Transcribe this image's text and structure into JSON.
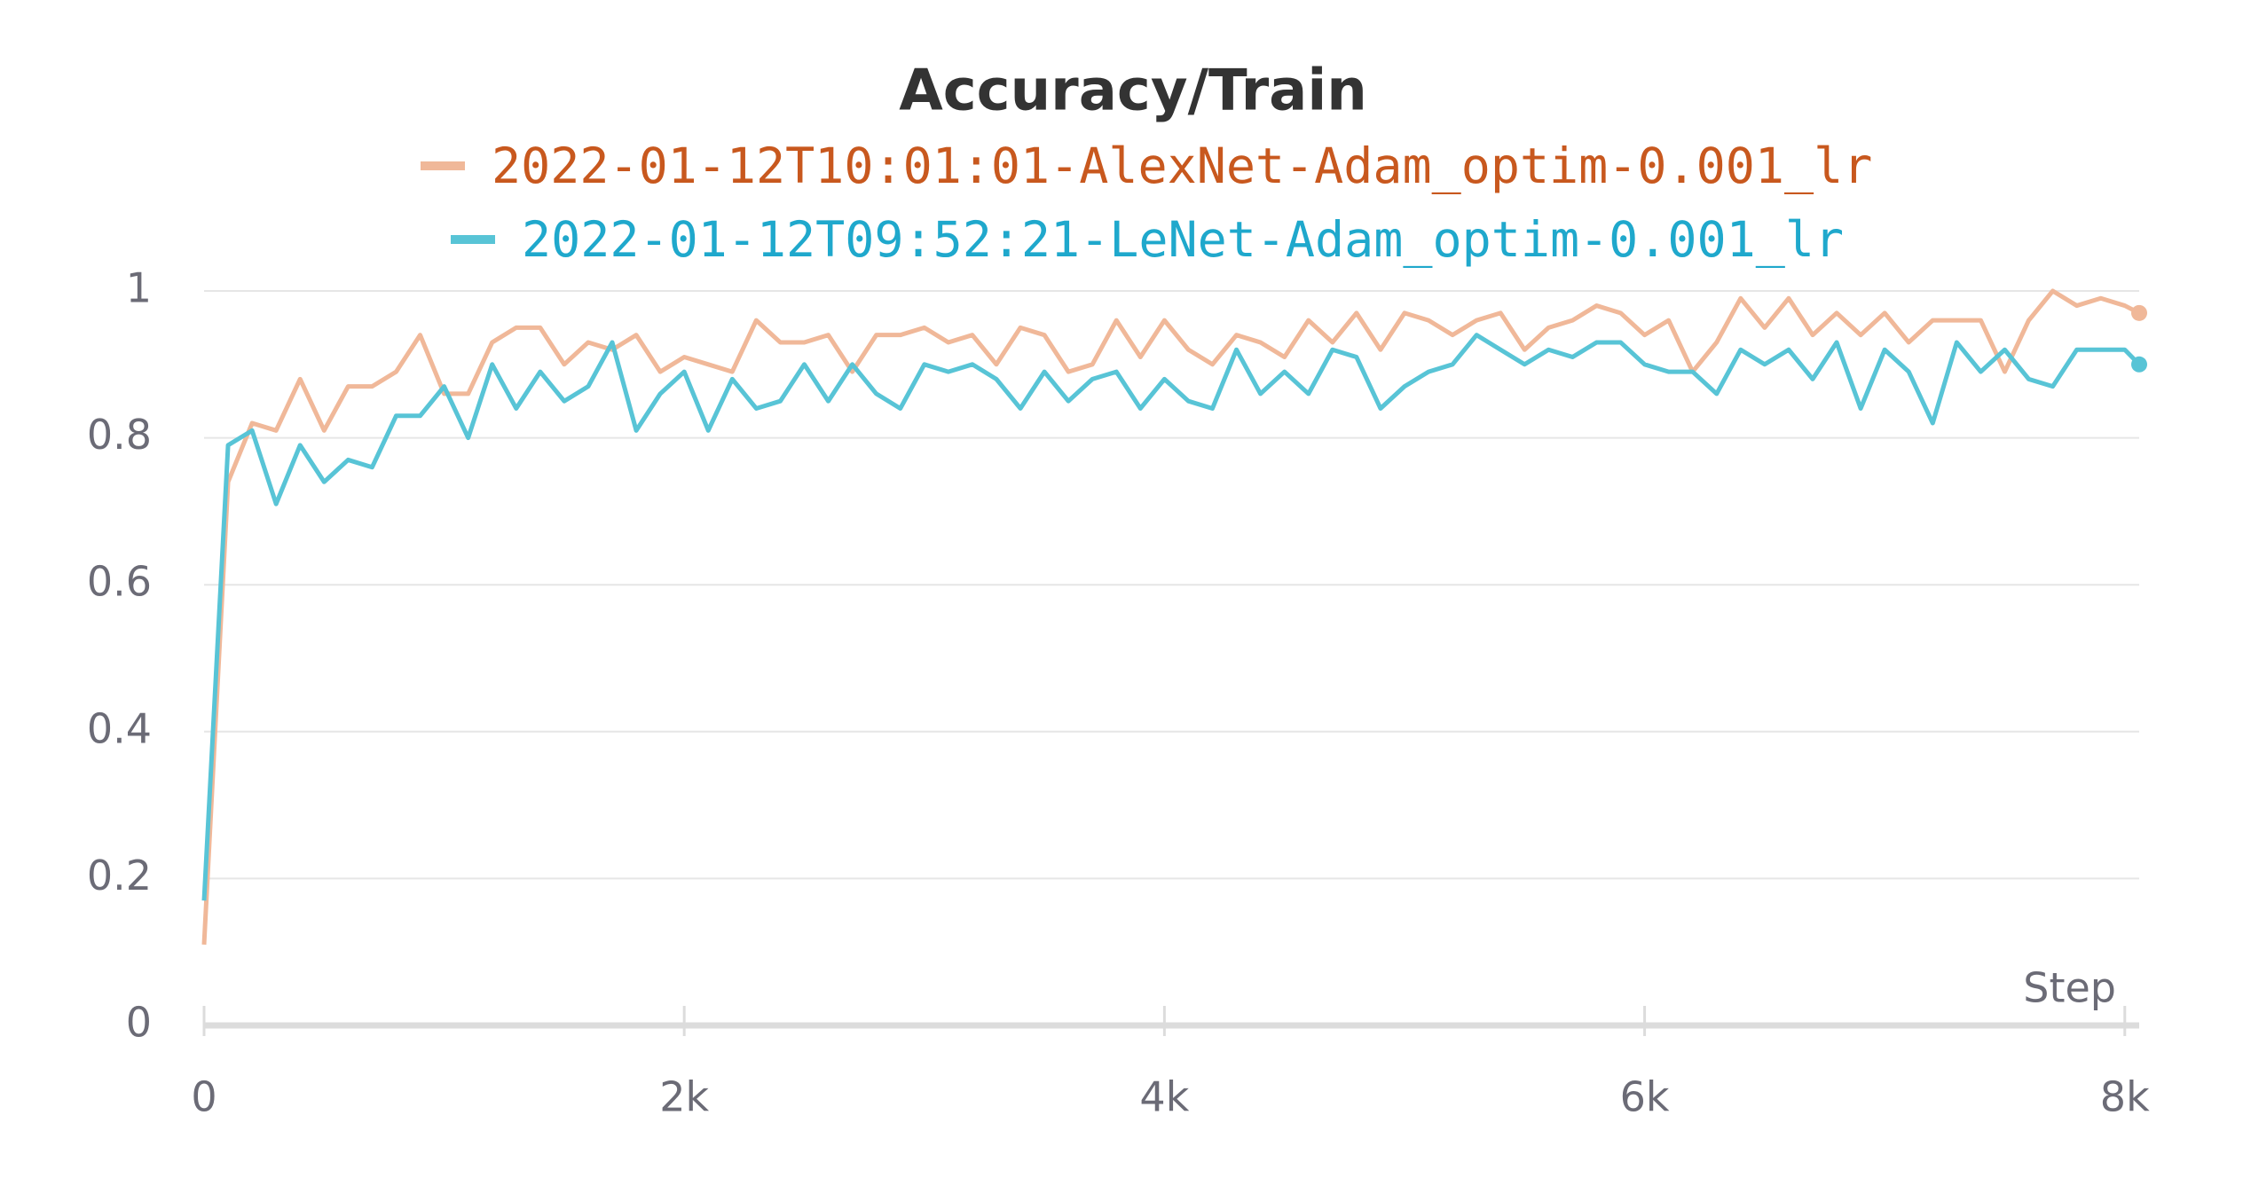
{
  "chart_data": {
    "type": "line",
    "title": "Accuracy/Train",
    "x_label": "Step",
    "x": [
      0,
      100,
      200,
      300,
      400,
      500,
      600,
      700,
      800,
      900,
      1000,
      1100,
      1200,
      1300,
      1400,
      1500,
      1600,
      1700,
      1800,
      1900,
      2000,
      2100,
      2200,
      2300,
      2400,
      2500,
      2600,
      2700,
      2800,
      2900,
      3000,
      3100,
      3200,
      3300,
      3400,
      3500,
      3600,
      3700,
      3800,
      3900,
      4000,
      4100,
      4200,
      4300,
      4400,
      4500,
      4600,
      4700,
      4800,
      4900,
      5000,
      5100,
      5200,
      5300,
      5400,
      5500,
      5600,
      5700,
      5800,
      5900,
      6000,
      6100,
      6200,
      6300,
      6400,
      6500,
      6600,
      6700,
      6800,
      6900,
      7000,
      7100,
      7200,
      7300,
      7400,
      7500,
      7600,
      7700,
      7800,
      7900,
      8000,
      8060
    ],
    "series": [
      {
        "name": "2022-01-12T10:01:01-AlexNet-Adam_optim-0.001_lr",
        "color": "#f0b899",
        "label_color": "#c8581e",
        "values": [
          0.11,
          0.74,
          0.82,
          0.81,
          0.88,
          0.81,
          0.87,
          0.87,
          0.89,
          0.94,
          0.86,
          0.86,
          0.93,
          0.95,
          0.95,
          0.9,
          0.93,
          0.92,
          0.94,
          0.89,
          0.91,
          0.9,
          0.89,
          0.96,
          0.93,
          0.93,
          0.94,
          0.89,
          0.94,
          0.94,
          0.95,
          0.93,
          0.94,
          0.9,
          0.95,
          0.94,
          0.89,
          0.9,
          0.96,
          0.91,
          0.96,
          0.92,
          0.9,
          0.94,
          0.93,
          0.91,
          0.96,
          0.93,
          0.97,
          0.92,
          0.97,
          0.96,
          0.94,
          0.96,
          0.97,
          0.92,
          0.95,
          0.96,
          0.98,
          0.97,
          0.94,
          0.96,
          0.89,
          0.93,
          0.99,
          0.95,
          0.99,
          0.94,
          0.97,
          0.94,
          0.97,
          0.93,
          0.96,
          0.96,
          0.96,
          0.89,
          0.96,
          1.0,
          0.98,
          0.99,
          0.98,
          0.97
        ]
      },
      {
        "name": "2022-01-12T09:52:21-LeNet-Adam_optim-0.001_lr",
        "color": "#58c4d6",
        "label_color": "#1fa8cc",
        "values": [
          0.17,
          0.79,
          0.81,
          0.71,
          0.79,
          0.74,
          0.77,
          0.76,
          0.83,
          0.83,
          0.87,
          0.8,
          0.9,
          0.84,
          0.89,
          0.85,
          0.87,
          0.93,
          0.81,
          0.86,
          0.89,
          0.81,
          0.88,
          0.84,
          0.85,
          0.9,
          0.85,
          0.9,
          0.86,
          0.84,
          0.9,
          0.89,
          0.9,
          0.88,
          0.84,
          0.89,
          0.85,
          0.88,
          0.89,
          0.84,
          0.88,
          0.85,
          0.84,
          0.92,
          0.86,
          0.89,
          0.86,
          0.92,
          0.91,
          0.84,
          0.87,
          0.89,
          0.9,
          0.94,
          0.92,
          0.9,
          0.92,
          0.91,
          0.93,
          0.93,
          0.9,
          0.89,
          0.89,
          0.86,
          0.92,
          0.9,
          0.92,
          0.88,
          0.93,
          0.84,
          0.92,
          0.89,
          0.82,
          0.93,
          0.89,
          0.92,
          0.88,
          0.87,
          0.92,
          0.92,
          0.92,
          0.9
        ]
      }
    ],
    "xlim": [
      0,
      8060
    ],
    "xticks": [
      0,
      {
        "value": 2000,
        "label": "2k"
      },
      {
        "value": 4000,
        "label": "4k"
      },
      {
        "value": 6000,
        "label": "6k"
      },
      {
        "value": 8000,
        "label": "8k"
      }
    ],
    "ylim": [
      0,
      1
    ],
    "yticks": [
      0,
      0.2,
      0.4,
      0.6,
      0.8,
      1
    ],
    "grid": true
  }
}
